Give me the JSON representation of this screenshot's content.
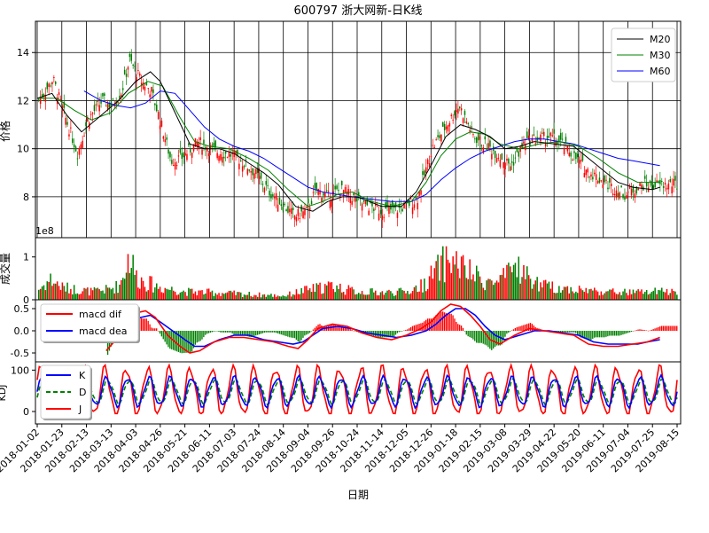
{
  "colors": {
    "up": "#ff0000",
    "down": "#008000",
    "ma20": "#000000",
    "ma30": "#008000",
    "ma60": "#0000ff",
    "dif": "#ff0000",
    "dea": "#0000ff",
    "k": "#0000ff",
    "d": "#008000",
    "j": "#ff0000"
  },
  "chart_data": {
    "type": "candlestick-with-indicators",
    "title": "600797 浙大网新-日K线",
    "xlabel": "日期",
    "date_ticks": [
      "2018-01-02",
      "2018-01-23",
      "2018-02-13",
      "2018-03-13",
      "2018-04-03",
      "2018-04-26",
      "2018-05-21",
      "2018-06-11",
      "2018-07-03",
      "2018-07-24",
      "2018-08-14",
      "2018-09-04",
      "2018-09-26",
      "2018-10-24",
      "2018-11-14",
      "2018-12-05",
      "2018-12-26",
      "2019-01-18",
      "2019-02-15",
      "2019-03-08",
      "2019-03-29",
      "2019-04-22",
      "2019-05-20",
      "2019-06-11",
      "2019-07-04",
      "2019-07-25",
      "2019-08-15"
    ],
    "price_panel": {
      "ylabel": "价格",
      "yticks": [
        8,
        10,
        12,
        14
      ],
      "ylim": [
        6.3,
        15.3
      ],
      "legend": [
        "M20",
        "M30",
        "M60"
      ],
      "legend_loc": "upper right",
      "close_anchors": [
        [
          0,
          12.0
        ],
        [
          0.3,
          12.4
        ],
        [
          0.6,
          12.9
        ],
        [
          1.0,
          11.6
        ],
        [
          1.6,
          9.8
        ],
        [
          2.0,
          11.2
        ],
        [
          2.6,
          12.0
        ],
        [
          3.0,
          11.8
        ],
        [
          3.4,
          12.4
        ],
        [
          3.7,
          13.7
        ],
        [
          4.2,
          12.8
        ],
        [
          4.6,
          12.4
        ],
        [
          5.0,
          11.0
        ],
        [
          5.4,
          9.5
        ],
        [
          5.8,
          9.6
        ],
        [
          6.5,
          10.3
        ],
        [
          7.2,
          9.9
        ],
        [
          8.0,
          9.7
        ],
        [
          8.8,
          9.0
        ],
        [
          9.4,
          8.2
        ],
        [
          10.4,
          7.2
        ],
        [
          10.9,
          7.4
        ],
        [
          11.3,
          8.3
        ],
        [
          11.8,
          8.0
        ],
        [
          12.3,
          8.3
        ],
        [
          13.2,
          7.7
        ],
        [
          14.0,
          7.4
        ],
        [
          14.7,
          7.5
        ],
        [
          15.4,
          7.9
        ],
        [
          16.0,
          10.0
        ],
        [
          16.6,
          11.0
        ],
        [
          17.1,
          11.8
        ],
        [
          17.7,
          10.5
        ],
        [
          18.4,
          10.0
        ],
        [
          19.2,
          9.3
        ],
        [
          19.8,
          10.3
        ],
        [
          20.8,
          10.5
        ],
        [
          21.3,
          10.2
        ],
        [
          22.3,
          9.1
        ],
        [
          23.3,
          8.4
        ],
        [
          23.8,
          8.1
        ],
        [
          24.6,
          8.5
        ],
        [
          25.3,
          8.5
        ]
      ],
      "ma20": [
        [
          0,
          12.1
        ],
        [
          0.6,
          12.3
        ],
        [
          1.2,
          11.4
        ],
        [
          1.8,
          10.7
        ],
        [
          2.5,
          11.3
        ],
        [
          3.3,
          12.0
        ],
        [
          4.0,
          12.8
        ],
        [
          4.6,
          13.2
        ],
        [
          5.0,
          12.8
        ],
        [
          5.6,
          11.5
        ],
        [
          6.2,
          10.2
        ],
        [
          6.8,
          10.0
        ],
        [
          7.4,
          10.0
        ],
        [
          8.0,
          9.8
        ],
        [
          8.6,
          9.4
        ],
        [
          9.2,
          9.0
        ],
        [
          9.8,
          8.5
        ],
        [
          10.5,
          7.6
        ],
        [
          11.2,
          7.4
        ],
        [
          11.8,
          7.8
        ],
        [
          12.4,
          8.0
        ],
        [
          13.0,
          8.0
        ],
        [
          14.0,
          7.6
        ],
        [
          14.8,
          7.6
        ],
        [
          15.4,
          8.2
        ],
        [
          16.0,
          9.3
        ],
        [
          16.6,
          10.5
        ],
        [
          17.2,
          11.0
        ],
        [
          17.8,
          10.8
        ],
        [
          18.4,
          10.5
        ],
        [
          19.0,
          10.0
        ],
        [
          19.6,
          10.1
        ],
        [
          20.2,
          10.3
        ],
        [
          21.0,
          10.2
        ],
        [
          21.8,
          10.1
        ],
        [
          22.4,
          9.6
        ],
        [
          23.0,
          9.1
        ],
        [
          23.6,
          8.6
        ],
        [
          24.2,
          8.4
        ],
        [
          25.0,
          8.3
        ],
        [
          25.3,
          8.4
        ]
      ],
      "ma30": [
        [
          0,
          12.1
        ],
        [
          0.8,
          12.1
        ],
        [
          1.5,
          11.6
        ],
        [
          2.2,
          11.2
        ],
        [
          3.0,
          11.5
        ],
        [
          3.7,
          12.3
        ],
        [
          4.5,
          12.8
        ],
        [
          5.1,
          12.6
        ],
        [
          5.8,
          11.3
        ],
        [
          6.4,
          10.3
        ],
        [
          7.0,
          10.1
        ],
        [
          7.8,
          10.0
        ],
        [
          8.6,
          9.6
        ],
        [
          9.4,
          9.1
        ],
        [
          10.2,
          8.3
        ],
        [
          11.0,
          7.6
        ],
        [
          11.6,
          7.8
        ],
        [
          12.2,
          8.1
        ],
        [
          12.8,
          8.2
        ],
        [
          13.6,
          7.8
        ],
        [
          14.4,
          7.6
        ],
        [
          15.2,
          7.8
        ],
        [
          15.8,
          8.6
        ],
        [
          16.4,
          9.7
        ],
        [
          17.0,
          10.4
        ],
        [
          17.6,
          10.7
        ],
        [
          18.2,
          10.6
        ],
        [
          18.8,
          10.2
        ],
        [
          19.6,
          10.0
        ],
        [
          20.4,
          10.2
        ],
        [
          21.2,
          10.3
        ],
        [
          22.0,
          10.1
        ],
        [
          22.8,
          9.6
        ],
        [
          23.6,
          9.0
        ],
        [
          24.4,
          8.6
        ],
        [
          25.3,
          8.6
        ]
      ],
      "ma60": [
        [
          1.9,
          12.4
        ],
        [
          2.6,
          12.0
        ],
        [
          3.2,
          11.8
        ],
        [
          3.8,
          11.7
        ],
        [
          4.4,
          11.9
        ],
        [
          5.0,
          12.4
        ],
        [
          5.6,
          12.3
        ],
        [
          6.2,
          11.6
        ],
        [
          6.8,
          10.9
        ],
        [
          7.4,
          10.4
        ],
        [
          8.0,
          10.1
        ],
        [
          8.6,
          9.9
        ],
        [
          9.2,
          9.6
        ],
        [
          9.8,
          9.2
        ],
        [
          10.4,
          8.8
        ],
        [
          11.0,
          8.4
        ],
        [
          11.6,
          8.2
        ],
        [
          12.2,
          8.1
        ],
        [
          12.8,
          8.0
        ],
        [
          13.6,
          7.9
        ],
        [
          14.4,
          7.8
        ],
        [
          15.2,
          7.8
        ],
        [
          15.8,
          8.1
        ],
        [
          16.4,
          8.7
        ],
        [
          17.0,
          9.2
        ],
        [
          17.6,
          9.6
        ],
        [
          18.2,
          9.9
        ],
        [
          18.8,
          10.1
        ],
        [
          19.4,
          10.3
        ],
        [
          20.0,
          10.4
        ],
        [
          20.6,
          10.4
        ],
        [
          21.2,
          10.3
        ],
        [
          21.8,
          10.2
        ],
        [
          22.4,
          10.0
        ],
        [
          23.0,
          9.8
        ],
        [
          23.6,
          9.6
        ],
        [
          24.2,
          9.5
        ],
        [
          25.3,
          9.3
        ]
      ]
    },
    "volume_panel": {
      "ylabel": "成交量",
      "offset_label": "1e8",
      "yticks": [
        0,
        1
      ],
      "ylim": [
        0,
        1.45
      ],
      "volume_anchors": [
        [
          0,
          0.25
        ],
        [
          0.5,
          0.5
        ],
        [
          1.0,
          0.3
        ],
        [
          1.6,
          0.25
        ],
        [
          2.2,
          0.2
        ],
        [
          2.8,
          0.25
        ],
        [
          3.3,
          0.35
        ],
        [
          3.7,
          1.1
        ],
        [
          4.0,
          0.55
        ],
        [
          4.5,
          0.4
        ],
        [
          5.0,
          0.3
        ],
        [
          5.5,
          0.25
        ],
        [
          6.0,
          0.2
        ],
        [
          7.0,
          0.18
        ],
        [
          8.0,
          0.15
        ],
        [
          9.0,
          0.12
        ],
        [
          10.0,
          0.1
        ],
        [
          10.6,
          0.2
        ],
        [
          11.0,
          0.25
        ],
        [
          11.5,
          0.3
        ],
        [
          12.0,
          0.35
        ],
        [
          12.5,
          0.25
        ],
        [
          13.0,
          0.2
        ],
        [
          14.0,
          0.18
        ],
        [
          15.0,
          0.2
        ],
        [
          15.6,
          0.35
        ],
        [
          16.0,
          0.6
        ],
        [
          16.4,
          0.85
        ],
        [
          16.7,
          1.0
        ],
        [
          17.0,
          0.9
        ],
        [
          17.4,
          0.7
        ],
        [
          18.0,
          0.5
        ],
        [
          18.6,
          0.4
        ],
        [
          19.1,
          0.6
        ],
        [
          19.4,
          0.9
        ],
        [
          19.8,
          0.6
        ],
        [
          20.4,
          0.35
        ],
        [
          21.0,
          0.3
        ],
        [
          22.0,
          0.25
        ],
        [
          23.0,
          0.2
        ],
        [
          24.0,
          0.18
        ],
        [
          25.3,
          0.2
        ]
      ]
    },
    "macd_panel": {
      "yticks": [
        -0.5,
        0.0,
        0.5
      ],
      "ylim": [
        -0.7,
        0.7
      ],
      "legend": [
        "macd dif",
        "macd dea"
      ],
      "legend_loc": "upper left",
      "dif": [
        [
          2.8,
          -0.45
        ],
        [
          3.2,
          -0.2
        ],
        [
          3.6,
          0.15
        ],
        [
          4.0,
          0.4
        ],
        [
          4.4,
          0.45
        ],
        [
          4.8,
          0.3
        ],
        [
          5.3,
          -0.1
        ],
        [
          5.8,
          -0.35
        ],
        [
          6.2,
          -0.5
        ],
        [
          6.6,
          -0.45
        ],
        [
          7.2,
          -0.25
        ],
        [
          7.8,
          -0.15
        ],
        [
          8.4,
          -0.15
        ],
        [
          9.0,
          -0.2
        ],
        [
          9.6,
          -0.25
        ],
        [
          10.2,
          -0.35
        ],
        [
          10.6,
          -0.4
        ],
        [
          11.0,
          -0.2
        ],
        [
          11.4,
          0.05
        ],
        [
          12.0,
          0.15
        ],
        [
          12.6,
          0.1
        ],
        [
          13.2,
          -0.05
        ],
        [
          13.8,
          -0.15
        ],
        [
          14.4,
          -0.2
        ],
        [
          15.0,
          -0.1
        ],
        [
          15.6,
          0.05
        ],
        [
          16.0,
          0.2
        ],
        [
          16.4,
          0.45
        ],
        [
          16.8,
          0.6
        ],
        [
          17.2,
          0.55
        ],
        [
          17.6,
          0.35
        ],
        [
          18.0,
          0.1
        ],
        [
          18.4,
          -0.2
        ],
        [
          18.8,
          -0.3
        ],
        [
          19.4,
          -0.1
        ],
        [
          20.0,
          0.05
        ],
        [
          20.6,
          0.0
        ],
        [
          21.2,
          -0.05
        ],
        [
          21.8,
          -0.1
        ],
        [
          22.4,
          -0.3
        ],
        [
          23.0,
          -0.35
        ],
        [
          23.6,
          -0.35
        ],
        [
          24.2,
          -0.3
        ],
        [
          24.8,
          -0.25
        ],
        [
          25.3,
          -0.15
        ]
      ],
      "dea": [
        [
          3.0,
          -0.2
        ],
        [
          3.4,
          -0.05
        ],
        [
          3.8,
          0.2
        ],
        [
          4.2,
          0.3
        ],
        [
          4.6,
          0.35
        ],
        [
          5.0,
          0.2
        ],
        [
          5.5,
          0.0
        ],
        [
          6.0,
          -0.2
        ],
        [
          6.4,
          -0.35
        ],
        [
          6.8,
          -0.35
        ],
        [
          7.4,
          -0.2
        ],
        [
          8.0,
          -0.1
        ],
        [
          8.6,
          -0.1
        ],
        [
          9.2,
          -0.2
        ],
        [
          9.8,
          -0.25
        ],
        [
          10.4,
          -0.3
        ],
        [
          10.8,
          -0.25
        ],
        [
          11.2,
          -0.1
        ],
        [
          11.6,
          0.05
        ],
        [
          12.2,
          0.1
        ],
        [
          12.8,
          0.05
        ],
        [
          13.4,
          -0.05
        ],
        [
          14.0,
          -0.1
        ],
        [
          14.6,
          -0.15
        ],
        [
          15.2,
          -0.1
        ],
        [
          15.8,
          0.0
        ],
        [
          16.2,
          0.15
        ],
        [
          16.6,
          0.35
        ],
        [
          17.0,
          0.5
        ],
        [
          17.4,
          0.5
        ],
        [
          17.8,
          0.35
        ],
        [
          18.2,
          0.1
        ],
        [
          18.6,
          -0.1
        ],
        [
          19.0,
          -0.2
        ],
        [
          19.6,
          -0.1
        ],
        [
          20.2,
          0.0
        ],
        [
          20.8,
          0.0
        ],
        [
          21.4,
          -0.05
        ],
        [
          22.0,
          -0.1
        ],
        [
          22.6,
          -0.25
        ],
        [
          23.2,
          -0.3
        ],
        [
          23.8,
          -0.3
        ],
        [
          24.4,
          -0.3
        ],
        [
          24.8,
          -0.25
        ],
        [
          25.3,
          -0.2
        ]
      ]
    },
    "kdj_panel": {
      "ylabel": "KDJ",
      "yticks": [
        0,
        100
      ],
      "ylim": [
        -30,
        120
      ],
      "legend": [
        "K",
        "D",
        "J"
      ],
      "legend_loc": "upper left",
      "kdj_cycles": 30
    }
  }
}
